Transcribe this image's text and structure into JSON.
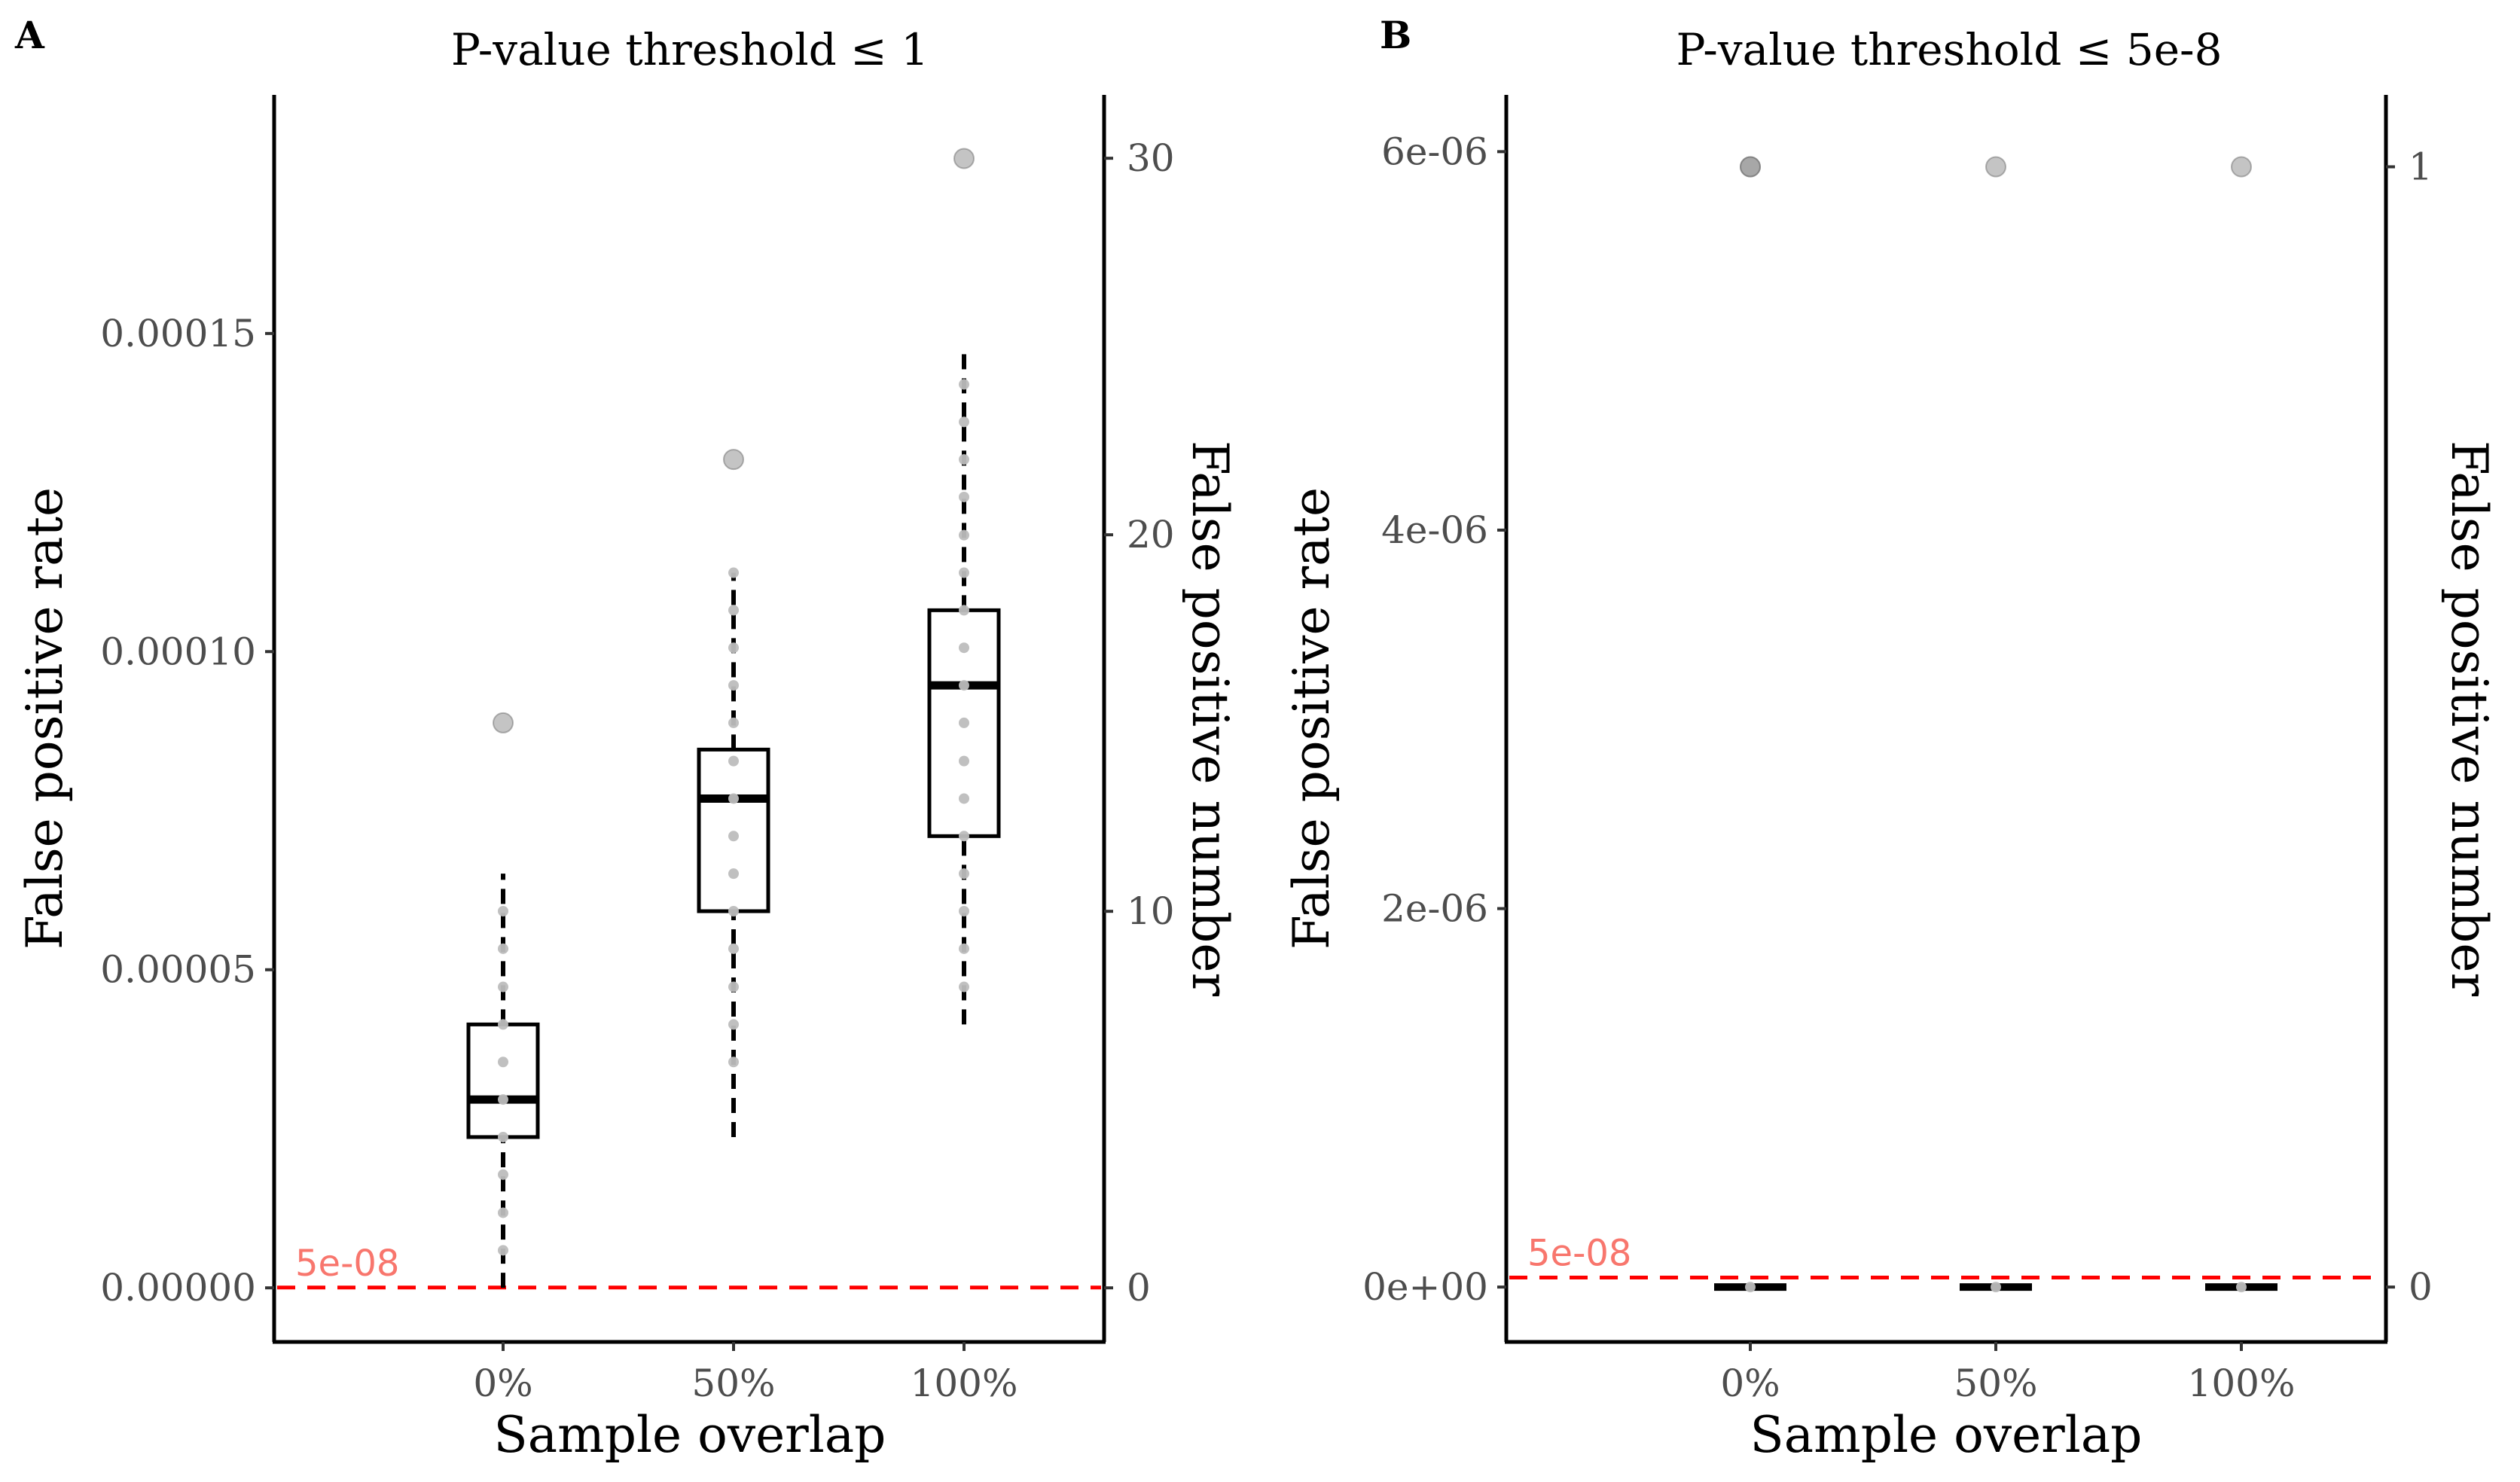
{
  "chart_data": [
    {
      "tag": "A",
      "type": "box",
      "title": "P-value threshold  ≤  1",
      "xlabel": "Sample overlap",
      "ylabel": "False positive rate",
      "ylabel_right": "False positive number",
      "categories": [
        "0%",
        "50%",
        "100%"
      ],
      "yticks": [
        0,
        5e-05,
        0.0001,
        0.00015
      ],
      "yticklabels": [
        "0.00000",
        "0.00005",
        "0.00010",
        "0.00015"
      ],
      "ylim": [
        -8.5e-06,
        0.0001875
      ],
      "right_ticks": [
        0,
        10,
        20,
        30
      ],
      "right_ticklabels": [
        "0",
        "10",
        "20",
        "30"
      ],
      "right_scale_per_unit": 5.918e-06,
      "ref_line": {
        "value": 5e-08,
        "label": "5e-08",
        "color": "#ff0000",
        "label_color": "#f8766d"
      },
      "boxes": [
        {
          "category": "0%",
          "whisker_low": 0.0,
          "q1": 2.37e-05,
          "median": 2.96e-05,
          "q3": 4.14e-05,
          "whisker_high": 6.51e-05,
          "outliers": [
            8.88e-05
          ]
        },
        {
          "category": "50%",
          "whisker_low": 2.37e-05,
          "q1": 5.92e-05,
          "median": 7.69e-05,
          "q3": 8.46e-05,
          "whisker_high": 0.0001124,
          "outliers": [
            0.0001302
          ]
        },
        {
          "category": "100%",
          "whisker_low": 4.14e-05,
          "q1": 7.1e-05,
          "median": 9.47e-05,
          "q3": 0.0001065,
          "whisker_high": 0.0001479,
          "outliers": [
            0.0001775
          ]
        }
      ],
      "points": [
        {
          "category": "0%",
          "values": [
            5.9e-06,
            1.18e-05,
            1.78e-05,
            2.37e-05,
            2.96e-05,
            3.55e-05,
            4.14e-05,
            4.73e-05,
            5.33e-05,
            5.92e-05
          ]
        },
        {
          "category": "50%",
          "values": [
            3.55e-05,
            4.14e-05,
            4.73e-05,
            5.33e-05,
            5.92e-05,
            6.51e-05,
            7.1e-05,
            7.69e-05,
            8.28e-05,
            8.88e-05,
            9.47e-05,
            0.0001006,
            0.0001065,
            0.0001124
          ]
        },
        {
          "category": "100%",
          "values": [
            4.73e-05,
            5.33e-05,
            5.92e-05,
            6.51e-05,
            7.1e-05,
            7.69e-05,
            8.28e-05,
            8.88e-05,
            9.47e-05,
            0.0001006,
            0.0001065,
            0.0001124,
            0.0001183,
            0.0001243,
            0.0001302,
            0.0001361,
            0.000142
          ]
        }
      ]
    },
    {
      "tag": "B",
      "type": "box",
      "title": "P-value threshold  ≤  5e-8",
      "xlabel": "Sample overlap",
      "ylabel": "False positive rate",
      "ylabel_right": "False positive number",
      "categories": [
        "0%",
        "50%",
        "100%"
      ],
      "yticks": [
        0,
        2e-06,
        4e-06,
        6e-06
      ],
      "yticklabels": [
        "0e+00",
        "2e-06",
        "4e-06",
        "6e-06"
      ],
      "ylim": [
        -2.9e-07,
        6.3e-06
      ],
      "right_ticks": [
        0,
        1
      ],
      "right_ticklabels": [
        "0",
        "1"
      ],
      "right_scale_per_unit": 5.92e-06,
      "ref_line": {
        "value": 5e-08,
        "label": "5e-08",
        "color": "#ff0000",
        "label_color": "#f8766d"
      },
      "boxes": [
        {
          "category": "0%",
          "whisker_low": 0,
          "q1": 0,
          "median": 0,
          "q3": 0,
          "whisker_high": 0,
          "outliers": [
            5.92e-06,
            5.92e-06
          ]
        },
        {
          "category": "50%",
          "whisker_low": 0,
          "q1": 0,
          "median": 0,
          "q3": 0,
          "whisker_high": 0,
          "outliers": [
            5.92e-06
          ]
        },
        {
          "category": "100%",
          "whisker_low": 0,
          "q1": 0,
          "median": 0,
          "q3": 0,
          "whisker_high": 0,
          "outliers": [
            5.92e-06
          ]
        }
      ],
      "points": [
        {
          "category": "0%",
          "values": [
            0
          ]
        },
        {
          "category": "50%",
          "values": [
            0
          ]
        },
        {
          "category": "100%",
          "values": [
            0
          ]
        }
      ]
    }
  ]
}
